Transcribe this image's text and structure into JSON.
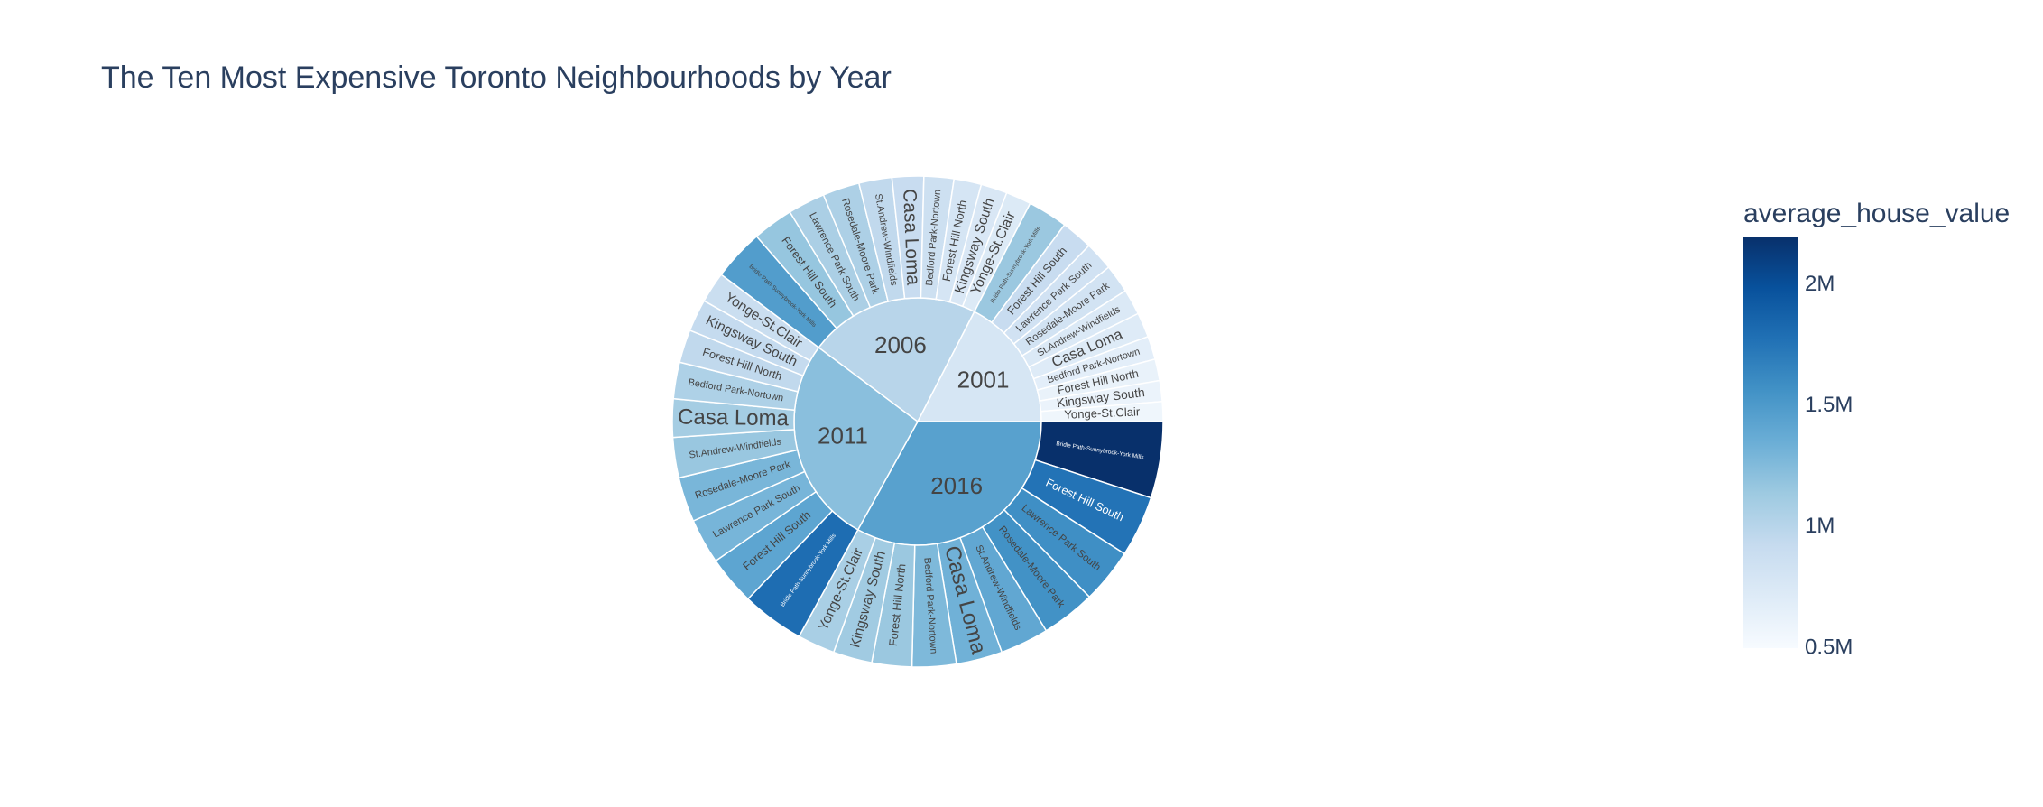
{
  "chart_data": {
    "type": "sunburst",
    "title": "The Ten Most Expensive Toronto Neighbourhoods by Year",
    "colorbar": {
      "title": "average_house_value",
      "range": [
        500000,
        2200000
      ],
      "ticks": [
        {
          "value": 500000,
          "label": "0.5M"
        },
        {
          "value": 1000000,
          "label": "1M"
        },
        {
          "value": 1500000,
          "label": "1.5M"
        },
        {
          "value": 2000000,
          "label": "2M"
        }
      ],
      "colorscale": [
        "#f7fbff",
        "#deebf7",
        "#c6dbef",
        "#9ecae1",
        "#6baed6",
        "#4292c6",
        "#2171b5",
        "#08519c",
        "#08306b"
      ]
    },
    "years": [
      {
        "label": "2016",
        "avg": 1450000,
        "children": [
          {
            "label": "Bridle Path-Sunnybrook-York Mills",
            "value": 2200000
          },
          {
            "label": "Forest Hill South",
            "value": 1760000
          },
          {
            "label": "Lawrence Park South",
            "value": 1580000
          },
          {
            "label": "Rosedale-Moore Park",
            "value": 1560000
          },
          {
            "label": "St.Andrew-Windfields",
            "value": 1400000
          },
          {
            "label": "Casa Loma",
            "value": 1330000
          },
          {
            "label": "Bedford Park-Nortown",
            "value": 1270000
          },
          {
            "label": "Forest Hill North",
            "value": 1150000
          },
          {
            "label": "Kingsway South",
            "value": 1120000
          },
          {
            "label": "Yonge-St.Clair",
            "value": 1080000
          }
        ]
      },
      {
        "label": "2011",
        "avg": 1220000,
        "children": [
          {
            "label": "Bridle Path-Sunnybrook-York Mills",
            "value": 1800000
          },
          {
            "label": "Forest Hill South",
            "value": 1420000
          },
          {
            "label": "Lawrence Park South",
            "value": 1300000
          },
          {
            "label": "Rosedale-Moore Park",
            "value": 1290000
          },
          {
            "label": "St.Andrew-Windfields",
            "value": 1160000
          },
          {
            "label": "Casa Loma",
            "value": 1100000
          },
          {
            "label": "Bedford Park-Nortown",
            "value": 1050000
          },
          {
            "label": "Forest Hill North",
            "value": 950000
          },
          {
            "label": "Kingsway South",
            "value": 930000
          },
          {
            "label": "Yonge-St.Clair",
            "value": 890000
          }
        ]
      },
      {
        "label": "2006",
        "avg": 1000000,
        "children": [
          {
            "label": "Bridle Path-Sunnybrook-York Mills",
            "value": 1480000
          },
          {
            "label": "Forest Hill South",
            "value": 1170000
          },
          {
            "label": "Lawrence Park South",
            "value": 1070000
          },
          {
            "label": "Rosedale-Moore Park",
            "value": 1060000
          },
          {
            "label": "St.Andrew-Windfields",
            "value": 950000
          },
          {
            "label": "Casa Loma",
            "value": 910000
          },
          {
            "label": "Bedford Park-Nortown",
            "value": 860000
          },
          {
            "label": "Forest Hill North",
            "value": 790000
          },
          {
            "label": "Kingsway South",
            "value": 760000
          },
          {
            "label": "Yonge-St.Clair",
            "value": 730000
          }
        ]
      },
      {
        "label": "2001",
        "avg": 780000,
        "children": [
          {
            "label": "Bridle Path-Sunnybrook-York Mills",
            "value": 1150000
          },
          {
            "label": "Forest Hill South",
            "value": 910000
          },
          {
            "label": "Lawrence Park South",
            "value": 830000
          },
          {
            "label": "Rosedale-Moore Park",
            "value": 820000
          },
          {
            "label": "St.Andrew-Windfields",
            "value": 740000
          },
          {
            "label": "Casa Loma",
            "value": 710000
          },
          {
            "label": "Bedford Park-Nortown",
            "value": 670000
          },
          {
            "label": "Forest Hill North",
            "value": 620000
          },
          {
            "label": "Kingsway South",
            "value": 600000
          },
          {
            "label": "Yonge-St.Clair",
            "value": 570000
          }
        ]
      }
    ]
  }
}
